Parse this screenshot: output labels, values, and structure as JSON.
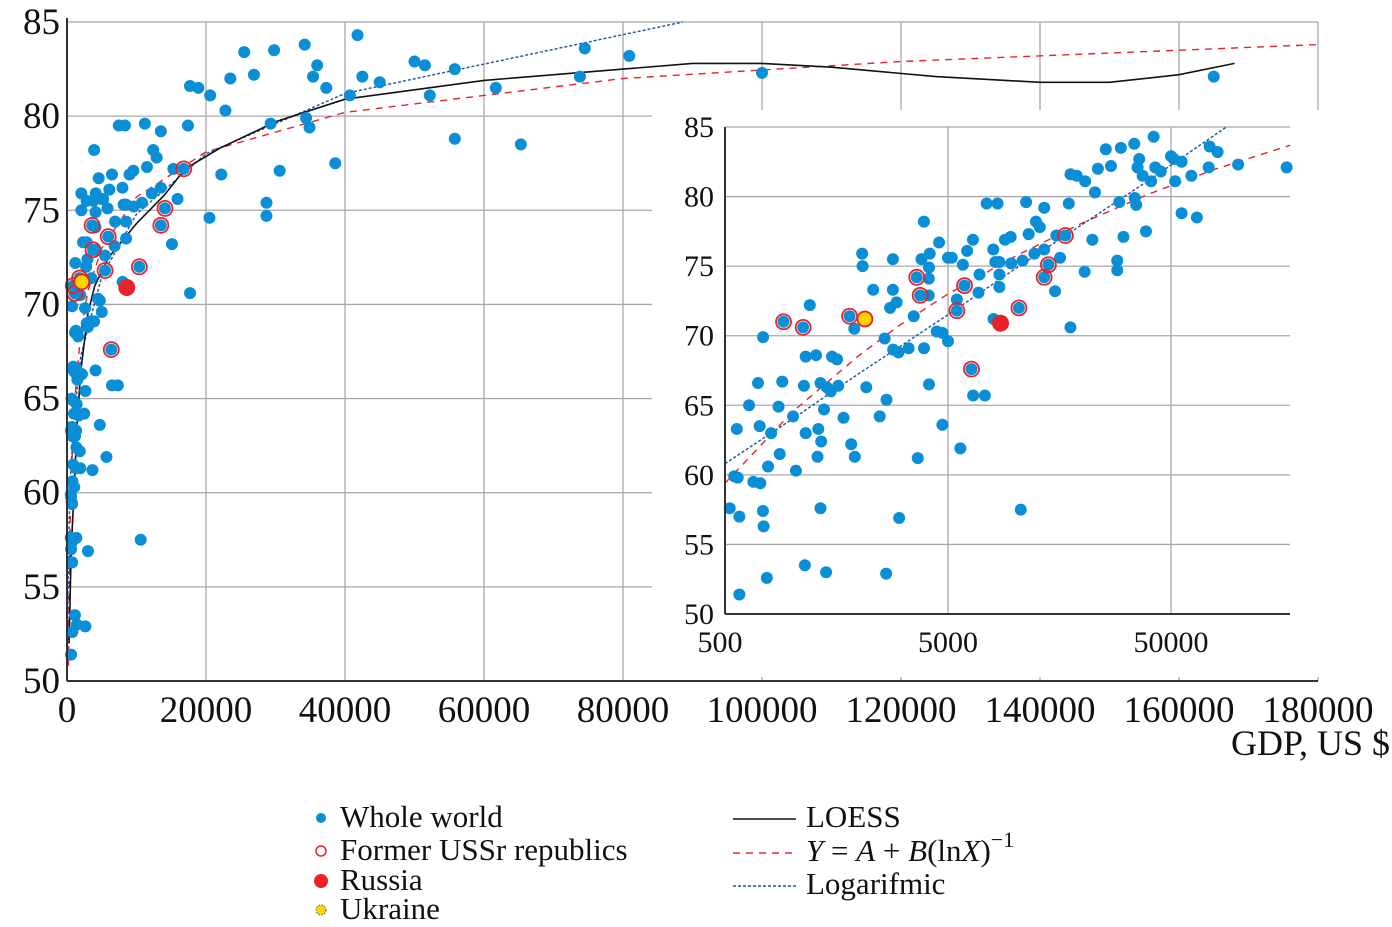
{
  "chart_data": [
    {
      "id": "main",
      "type": "scatter",
      "xlabel": "GDP, US $",
      "ylabel": "",
      "xlim": [
        0,
        180000
      ],
      "ylim": [
        50,
        85
      ],
      "xticks": [
        0,
        20000,
        40000,
        60000,
        80000,
        100000,
        120000,
        140000,
        160000,
        180000
      ],
      "yticks": [
        50,
        55,
        60,
        65,
        70,
        75,
        80,
        85
      ],
      "xscale": "linear",
      "grid": true
    },
    {
      "id": "inset",
      "type": "scatter",
      "xlim": [
        500,
        171000
      ],
      "ylim": [
        50,
        85
      ],
      "xticks": [
        500,
        5000,
        50000
      ],
      "yticks": [
        50,
        55,
        60,
        65,
        70,
        75,
        80,
        85
      ],
      "xscale": "log",
      "grid": true
    }
  ],
  "series": {
    "world": {
      "name": "Whole world",
      "color": "#0a8fd6",
      "points": [
        [
          41800,
          84.3
        ],
        [
          34200,
          83.8
        ],
        [
          29800,
          83.5
        ],
        [
          25500,
          83.4
        ],
        [
          74500,
          83.6
        ],
        [
          80900,
          83.2
        ],
        [
          50000,
          82.9
        ],
        [
          51500,
          82.7
        ],
        [
          55800,
          82.5
        ],
        [
          36000,
          82.7
        ],
        [
          26900,
          82.2
        ],
        [
          23500,
          82.0
        ],
        [
          35400,
          82.1
        ],
        [
          42500,
          82.1
        ],
        [
          45000,
          81.8
        ],
        [
          37300,
          81.5
        ],
        [
          40700,
          81.1
        ],
        [
          61700,
          81.5
        ],
        [
          73800,
          82.1
        ],
        [
          100000,
          82.3
        ],
        [
          165000,
          82.1
        ],
        [
          52200,
          81.1
        ],
        [
          17700,
          81.6
        ],
        [
          18900,
          81.5
        ],
        [
          20600,
          81.1
        ],
        [
          22800,
          80.3
        ],
        [
          29300,
          79.6
        ],
        [
          34400,
          79.9
        ],
        [
          34900,
          79.4
        ],
        [
          55800,
          78.8
        ],
        [
          65300,
          78.5
        ],
        [
          38600,
          77.5
        ],
        [
          30600,
          77.1
        ],
        [
          22200,
          76.9
        ],
        [
          17400,
          79.5
        ],
        [
          13500,
          79.2
        ],
        [
          11200,
          79.6
        ],
        [
          8340,
          79.5
        ],
        [
          7450,
          79.5
        ],
        [
          3900,
          78.2
        ],
        [
          12400,
          78.2
        ],
        [
          12900,
          77.8
        ],
        [
          11500,
          77.3
        ],
        [
          9550,
          77.1
        ],
        [
          9000,
          76.9
        ],
        [
          6470,
          76.9
        ],
        [
          15300,
          77.2
        ],
        [
          16800,
          77.2
        ],
        [
          7980,
          76.2
        ],
        [
          6090,
          76.1
        ],
        [
          4560,
          76.7
        ],
        [
          5000,
          75.6
        ],
        [
          5200,
          75.6
        ],
        [
          4140,
          75.9
        ],
        [
          2830,
          75.5
        ],
        [
          2060,
          75.9
        ],
        [
          2070,
          75.0
        ],
        [
          2310,
          73.3
        ],
        [
          2830,
          73.3
        ],
        [
          2940,
          72.4
        ],
        [
          2750,
          72.0
        ],
        [
          3510,
          71.4
        ],
        [
          3620,
          74.2
        ],
        [
          3750,
          72.9
        ],
        [
          4110,
          74.9
        ],
        [
          3800,
          75.5
        ],
        [
          4100,
          74.1
        ],
        [
          4100,
          72.9
        ],
        [
          5830,
          75.1
        ],
        [
          5930,
          73.6
        ],
        [
          6920,
          74.4
        ],
        [
          6850,
          73.1
        ],
        [
          5480,
          72.6
        ],
        [
          5480,
          71.8
        ],
        [
          8150,
          75.3
        ],
        [
          8500,
          75.3
        ],
        [
          9600,
          75.2
        ],
        [
          8500,
          74.4
        ],
        [
          8500,
          73.5
        ],
        [
          10800,
          75.4
        ],
        [
          12200,
          75.9
        ],
        [
          13500,
          76.2
        ],
        [
          14100,
          75.1
        ],
        [
          13500,
          74.2
        ],
        [
          15900,
          75.6
        ],
        [
          15100,
          73.2
        ],
        [
          20500,
          74.6
        ],
        [
          28700,
          75.4
        ],
        [
          28700,
          74.7
        ],
        [
          8000,
          71.2
        ],
        [
          10400,
          72.0
        ],
        [
          17700,
          70.6
        ],
        [
          6370,
          67.6
        ],
        [
          6480,
          65.7
        ],
        [
          7320,
          65.7
        ],
        [
          4720,
          70.2
        ],
        [
          5000,
          69.6
        ],
        [
          4450,
          70.3
        ],
        [
          3900,
          69.1
        ],
        [
          3330,
          69.1
        ],
        [
          3000,
          68.8
        ],
        [
          2840,
          69.0
        ],
        [
          2600,
          69.8
        ],
        [
          1900,
          70.5
        ],
        [
          1810,
          71.4
        ],
        [
          915,
          71.0
        ],
        [
          1120,
          70.6
        ],
        [
          1200,
          72.2
        ],
        [
          741,
          69.9
        ],
        [
          1150,
          68.5
        ],
        [
          1280,
          68.6
        ],
        [
          1510,
          68.5
        ],
        [
          1590,
          68.3
        ],
        [
          703,
          66.6
        ],
        [
          903,
          66.7
        ],
        [
          1130,
          66.4
        ],
        [
          1340,
          66.6
        ],
        [
          1430,
          66.3
        ],
        [
          1610,
          66.4
        ],
        [
          1490,
          66.0
        ],
        [
          2150,
          66.3
        ],
        [
          4110,
          66.5
        ],
        [
          641,
          65.0
        ],
        [
          869,
          64.9
        ],
        [
          1010,
          64.2
        ],
        [
          1390,
          64.7
        ],
        [
          1700,
          64.1
        ],
        [
          2650,
          65.4
        ],
        [
          2470,
          64.2
        ],
        [
          565,
          63.3
        ],
        [
          715,
          63.5
        ],
        [
          805,
          63.0
        ],
        [
          1150,
          63.0
        ],
        [
          1310,
          63.3
        ],
        [
          1350,
          62.4
        ],
        [
          1840,
          62.2
        ],
        [
          4720,
          63.6
        ],
        [
          880,
          61.5
        ],
        [
          1300,
          61.3
        ],
        [
          1910,
          61.3
        ],
        [
          780,
          60.6
        ],
        [
          1040,
          60.3
        ],
        [
          3660,
          61.2
        ],
        [
          5680,
          61.9
        ],
        [
          550,
          59.9
        ],
        [
          570,
          59.8
        ],
        [
          670,
          59.5
        ],
        [
          720,
          59.4
        ],
        [
          525,
          57.6
        ],
        [
          580,
          57.0
        ],
        [
          1340,
          57.6
        ],
        [
          740,
          57.4
        ],
        [
          745,
          56.3
        ],
        [
          3020,
          56.9
        ],
        [
          10600,
          57.5
        ],
        [
          1140,
          53.5
        ],
        [
          1420,
          53.0
        ],
        [
          2640,
          52.9
        ],
        [
          770,
          52.6
        ],
        [
          580,
          51.4
        ]
      ]
    },
    "ussr": {
      "name": "Former USSr republics",
      "color": "#e8232a",
      "points": [
        [
          915,
          71.0
        ],
        [
          1120,
          70.6
        ],
        [
          1810,
          71.4
        ],
        [
          3620,
          74.2
        ],
        [
          3750,
          72.9
        ],
        [
          5930,
          73.6
        ],
        [
          5480,
          71.8
        ],
        [
          6370,
          67.6
        ],
        [
          10400,
          72.0
        ],
        [
          13500,
          74.2
        ],
        [
          14100,
          75.1
        ],
        [
          16800,
          77.2
        ]
      ]
    },
    "russia": {
      "name": "Russia",
      "color": "#e8232a",
      "points": [
        [
          8600,
          70.9
        ]
      ]
    },
    "ukraine": {
      "name": "Ukraine",
      "color": "#ffd400",
      "points": [
        [
          2120,
          71.2
        ]
      ]
    },
    "loess": {
      "name": "LOESS",
      "color": "#111111",
      "points": [
        [
          300,
          52
        ],
        [
          600,
          57
        ],
        [
          1000,
          60
        ],
        [
          1500,
          64
        ],
        [
          2000,
          66.5
        ],
        [
          3000,
          69.5
        ],
        [
          4000,
          71
        ],
        [
          6000,
          72.5
        ],
        [
          10000,
          74.3
        ],
        [
          14000,
          75.8
        ],
        [
          17000,
          77.2
        ],
        [
          22000,
          78.3
        ],
        [
          30000,
          79.7
        ],
        [
          40000,
          80.9
        ],
        [
          50000,
          81.4
        ],
        [
          60000,
          81.9
        ],
        [
          80000,
          82.5
        ],
        [
          90000,
          82.8
        ],
        [
          100000,
          82.8
        ],
        [
          110000,
          82.6
        ],
        [
          125000,
          82.1
        ],
        [
          140000,
          81.8
        ],
        [
          150000,
          81.8
        ],
        [
          160000,
          82.2
        ],
        [
          168000,
          82.8
        ]
      ]
    },
    "inverse_log": {
      "name": "Y = A + B(lnX)−1",
      "color": "#e8232a",
      "points": [
        [
          200,
          50.8
        ],
        [
          300,
          54.5
        ],
        [
          500,
          59.4
        ],
        [
          1000,
          64.5
        ],
        [
          2000,
          68.6
        ],
        [
          3000,
          70.7
        ],
        [
          5000,
          73.0
        ],
        [
          10000,
          75.7
        ],
        [
          20000,
          78.1
        ],
        [
          40000,
          80.2
        ],
        [
          80000,
          82.0
        ],
        [
          120000,
          82.9
        ],
        [
          180000,
          83.8
        ]
      ]
    },
    "logarithmic": {
      "name": "Logarifmic",
      "color": "#1f4fa8",
      "points": [
        [
          60,
          50.9
        ],
        [
          100,
          53.3
        ],
        [
          200,
          56.5
        ],
        [
          300,
          58.4
        ],
        [
          500,
          60.8
        ],
        [
          1000,
          64.0
        ],
        [
          2000,
          67.3
        ],
        [
          5000,
          71.5
        ],
        [
          10000,
          74.8
        ],
        [
          20000,
          78.0
        ],
        [
          40000,
          81.2
        ],
        [
          88600,
          85.0
        ]
      ]
    }
  },
  "legend": {
    "markers": [
      {
        "key": "world",
        "label": "Whole world"
      },
      {
        "key": "ussr",
        "label": "Former USSr republics"
      },
      {
        "key": "russia",
        "label": "Russia"
      },
      {
        "key": "ukraine",
        "label": "Ukraine"
      }
    ],
    "lines": [
      {
        "key": "loess",
        "label": "LOESS"
      },
      {
        "key": "inverse_log",
        "label_parts": [
          "Y",
          " = ",
          "A",
          " + ",
          "B",
          "(ln",
          "X",
          ")",
          "−1"
        ]
      },
      {
        "key": "logarithmic",
        "label": "Logarifmic"
      }
    ]
  },
  "labels": {
    "x_axis": "GDP, US $"
  }
}
